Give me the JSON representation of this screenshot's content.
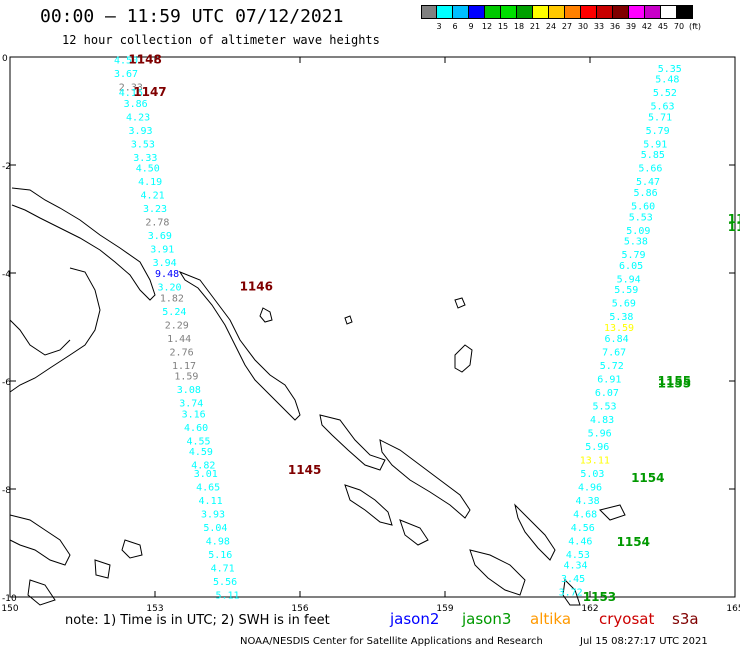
{
  "header": {
    "title": "00:00 — 11:59 UTC 07/12/2021",
    "subtitle": "12 hour collection of altimeter wave heights"
  },
  "colorbar": {
    "colors": [
      "#808080",
      "#00ffff",
      "#00bfff",
      "#0000ff",
      "#00c800",
      "#00e000",
      "#00a000",
      "#ffff00",
      "#ffc800",
      "#ff8000",
      "#ff0000",
      "#c80000",
      "#800000",
      "#ff00ff",
      "#c800c8",
      "#ffffff",
      "#000000"
    ],
    "labels": [
      "3",
      "6",
      "9",
      "12",
      "15",
      "18",
      "21",
      "24",
      "27",
      "30",
      "33",
      "36",
      "39",
      "42",
      "45",
      "70",
      "(ft)"
    ]
  },
  "footer": {
    "note": "note: 1) Time is in UTC; 2) SWH is in feet",
    "legend": [
      {
        "label": "jason2",
        "color": "#0000ff"
      },
      {
        "label": "jason3",
        "color": "#009900"
      },
      {
        "label": "altika",
        "color": "#ff9900"
      },
      {
        "label": "cryosat",
        "color": "#cc0000"
      },
      {
        "label": "s3a",
        "color": "#800000"
      }
    ],
    "credit": "NOAA/NESDIS Center for Satellite Applications and Research",
    "timestamp": "Jul 15 08:27:17 UTC 2021"
  },
  "chart_data": {
    "type": "scatter",
    "xlim": [
      150,
      165
    ],
    "ylim": [
      -10,
      0
    ],
    "x_ticks": [
      "150",
      "153",
      "156",
      "159",
      "162",
      "165"
    ],
    "y_ticks": [
      "0",
      "-2",
      "-4",
      "-6",
      "-8",
      "-10"
    ],
    "pass_labels": [
      {
        "text": "1148",
        "lon": 152.45,
        "lat": -0.05,
        "color": "#800000"
      },
      {
        "text": "1147",
        "lon": 152.55,
        "lat": -0.65,
        "color": "#800000"
      },
      {
        "text": "1146",
        "lon": 154.75,
        "lat": -4.25,
        "color": "#800000"
      },
      {
        "text": "1145",
        "lon": 155.75,
        "lat": -7.65,
        "color": "#800000"
      },
      {
        "text": "1155",
        "lon": 163.4,
        "lat": -6.0,
        "color": "#009900"
      },
      {
        "text": "1155",
        "lon": 163.4,
        "lat": -6.05,
        "color": "#009900"
      },
      {
        "text": "1154",
        "lon": 162.85,
        "lat": -7.8,
        "color": "#009900"
      },
      {
        "text": "1154",
        "lon": 162.55,
        "lat": -8.98,
        "color": "#009900"
      },
      {
        "text": "1153",
        "lon": 161.85,
        "lat": -10.0,
        "color": "#009900"
      },
      {
        "text": "11",
        "lon": 164.85,
        "lat": -3.0,
        "color": "#009900"
      },
      {
        "text": "11",
        "lon": 164.85,
        "lat": -3.15,
        "color": "#009900"
      }
    ],
    "series": [
      {
        "name": "s3a",
        "points": [
          {
            "lon": 152.4,
            "lat": -0.05,
            "v": "4.50",
            "c": "#00ffff"
          },
          {
            "lon": 152.4,
            "lat": -0.3,
            "v": "3.67",
            "c": "#00ffff"
          },
          {
            "lon": 152.5,
            "lat": -0.55,
            "v": "2.33",
            "c": "#808080"
          },
          {
            "lon": 152.5,
            "lat": -0.65,
            "v": "4.16",
            "c": "#00ffff"
          },
          {
            "lon": 152.6,
            "lat": -0.85,
            "v": "3.86",
            "c": "#00ffff"
          },
          {
            "lon": 152.65,
            "lat": -1.1,
            "v": "4.23",
            "c": "#00ffff"
          },
          {
            "lon": 152.7,
            "lat": -1.35,
            "v": "3.93",
            "c": "#00ffff"
          },
          {
            "lon": 152.75,
            "lat": -1.6,
            "v": "3.53",
            "c": "#00ffff"
          },
          {
            "lon": 152.8,
            "lat": -1.85,
            "v": "3.33",
            "c": "#00ffff"
          },
          {
            "lon": 152.85,
            "lat": -2.05,
            "v": "4.50",
            "c": "#00ffff"
          },
          {
            "lon": 152.9,
            "lat": -2.3,
            "v": "4.19",
            "c": "#00ffff"
          },
          {
            "lon": 152.95,
            "lat": -2.55,
            "v": "4.21",
            "c": "#00ffff"
          },
          {
            "lon": 153.0,
            "lat": -2.8,
            "v": "3.23",
            "c": "#00ffff"
          },
          {
            "lon": 153.05,
            "lat": -3.05,
            "v": "2.78",
            "c": "#808080"
          },
          {
            "lon": 153.1,
            "lat": -3.3,
            "v": "3.69",
            "c": "#00ffff"
          },
          {
            "lon": 153.15,
            "lat": -3.55,
            "v": "3.91",
            "c": "#00ffff"
          },
          {
            "lon": 153.2,
            "lat": -3.8,
            "v": "3.94",
            "c": "#00ffff"
          },
          {
            "lon": 153.25,
            "lat": -4.0,
            "v": "9.48",
            "c": "#0000ff"
          },
          {
            "lon": 153.3,
            "lat": -4.25,
            "v": "3.20",
            "c": "#00ffff"
          },
          {
            "lon": 153.35,
            "lat": -4.45,
            "v": "1.82",
            "c": "#808080"
          },
          {
            "lon": 153.4,
            "lat": -4.7,
            "v": "5.24",
            "c": "#00ffff"
          },
          {
            "lon": 153.45,
            "lat": -4.95,
            "v": "2.29",
            "c": "#808080"
          },
          {
            "lon": 153.5,
            "lat": -5.2,
            "v": "1.44",
            "c": "#808080"
          },
          {
            "lon": 153.55,
            "lat": -5.45,
            "v": "2.76",
            "c": "#808080"
          },
          {
            "lon": 153.6,
            "lat": -5.7,
            "v": "1.17",
            "c": "#808080"
          },
          {
            "lon": 153.65,
            "lat": -5.9,
            "v": "1.59",
            "c": "#808080"
          },
          {
            "lon": 153.7,
            "lat": -6.15,
            "v": "3.08",
            "c": "#00ffff"
          },
          {
            "lon": 153.75,
            "lat": -6.4,
            "v": "3.74",
            "c": "#00ffff"
          },
          {
            "lon": 153.8,
            "lat": -6.6,
            "v": "3.16",
            "c": "#00ffff"
          },
          {
            "lon": 153.85,
            "lat": -6.85,
            "v": "4.60",
            "c": "#00ffff"
          },
          {
            "lon": 153.9,
            "lat": -7.1,
            "v": "4.55",
            "c": "#00ffff"
          },
          {
            "lon": 153.95,
            "lat": -7.3,
            "v": "4.59",
            "c": "#00ffff"
          },
          {
            "lon": 154.0,
            "lat": -7.55,
            "v": "4.82",
            "c": "#00ffff"
          },
          {
            "lon": 154.05,
            "lat": -7.7,
            "v": "3.01",
            "c": "#00ffff"
          },
          {
            "lon": 154.1,
            "lat": -7.95,
            "v": "4.65",
            "c": "#00ffff"
          },
          {
            "lon": 154.15,
            "lat": -8.2,
            "v": "4.11",
            "c": "#00ffff"
          },
          {
            "lon": 154.2,
            "lat": -8.45,
            "v": "3.93",
            "c": "#00ffff"
          },
          {
            "lon": 154.25,
            "lat": -8.7,
            "v": "5.04",
            "c": "#00ffff"
          },
          {
            "lon": 154.3,
            "lat": -8.95,
            "v": "4.98",
            "c": "#00ffff"
          },
          {
            "lon": 154.35,
            "lat": -9.2,
            "v": "5.16",
            "c": "#00ffff"
          },
          {
            "lon": 154.4,
            "lat": -9.45,
            "v": "4.71",
            "c": "#00ffff"
          },
          {
            "lon": 154.45,
            "lat": -9.7,
            "v": "5.56",
            "c": "#00ffff"
          },
          {
            "lon": 154.5,
            "lat": -9.95,
            "v": "5.11",
            "c": "#00ffff"
          }
        ]
      },
      {
        "name": "jason3",
        "points": [
          {
            "lon": 161.6,
            "lat": -9.9,
            "v": "3.72",
            "c": "#00ffff"
          },
          {
            "lon": 161.65,
            "lat": -9.65,
            "v": "3.45",
            "c": "#00ffff"
          },
          {
            "lon": 161.7,
            "lat": -9.4,
            "v": "4.34",
            "c": "#00ffff"
          },
          {
            "lon": 161.75,
            "lat": -9.2,
            "v": "4.53",
            "c": "#00ffff"
          },
          {
            "lon": 161.8,
            "lat": -8.95,
            "v": "4.46",
            "c": "#00ffff"
          },
          {
            "lon": 161.85,
            "lat": -8.7,
            "v": "4.56",
            "c": "#00ffff"
          },
          {
            "lon": 161.9,
            "lat": -8.45,
            "v": "4.68",
            "c": "#00ffff"
          },
          {
            "lon": 161.95,
            "lat": -8.2,
            "v": "4.38",
            "c": "#00ffff"
          },
          {
            "lon": 162.0,
            "lat": -7.95,
            "v": "4.96",
            "c": "#00ffff"
          },
          {
            "lon": 162.05,
            "lat": -7.7,
            "v": "5.03",
            "c": "#00ffff"
          },
          {
            "lon": 162.1,
            "lat": -7.45,
            "v": "13.11",
            "c": "#ffff00"
          },
          {
            "lon": 162.15,
            "lat": -7.2,
            "v": "5.96",
            "c": "#00ffff"
          },
          {
            "lon": 162.2,
            "lat": -6.95,
            "v": "5.96",
            "c": "#00ffff"
          },
          {
            "lon": 162.25,
            "lat": -6.7,
            "v": "4.83",
            "c": "#00ffff"
          },
          {
            "lon": 162.3,
            "lat": -6.45,
            "v": "5.53",
            "c": "#00ffff"
          },
          {
            "lon": 162.35,
            "lat": -6.2,
            "v": "6.07",
            "c": "#00ffff"
          },
          {
            "lon": 162.4,
            "lat": -5.95,
            "v": "6.91",
            "c": "#00ffff"
          },
          {
            "lon": 162.45,
            "lat": -5.7,
            "v": "5.72",
            "c": "#00ffff"
          },
          {
            "lon": 162.5,
            "lat": -5.45,
            "v": "7.67",
            "c": "#00ffff"
          },
          {
            "lon": 162.55,
            "lat": -5.2,
            "v": "6.84",
            "c": "#00ffff"
          },
          {
            "lon": 162.6,
            "lat": -5.0,
            "v": "13.59",
            "c": "#ffff00"
          },
          {
            "lon": 162.65,
            "lat": -4.8,
            "v": "5.38",
            "c": "#00ffff"
          },
          {
            "lon": 162.7,
            "lat": -4.55,
            "v": "5.69",
            "c": "#00ffff"
          },
          {
            "lon": 162.75,
            "lat": -4.3,
            "v": "5.59",
            "c": "#00ffff"
          },
          {
            "lon": 162.8,
            "lat": -4.1,
            "v": "5.94",
            "c": "#00ffff"
          },
          {
            "lon": 162.85,
            "lat": -3.85,
            "v": "6.05",
            "c": "#00ffff"
          },
          {
            "lon": 162.9,
            "lat": -3.65,
            "v": "5.79",
            "c": "#00ffff"
          },
          {
            "lon": 162.95,
            "lat": -3.4,
            "v": "5.38",
            "c": "#00ffff"
          },
          {
            "lon": 163.0,
            "lat": -3.2,
            "v": "5.09",
            "c": "#00ffff"
          },
          {
            "lon": 163.05,
            "lat": -2.95,
            "v": "5.53",
            "c": "#00ffff"
          },
          {
            "lon": 163.1,
            "lat": -2.75,
            "v": "5.60",
            "c": "#00ffff"
          },
          {
            "lon": 163.15,
            "lat": -2.5,
            "v": "5.86",
            "c": "#00ffff"
          },
          {
            "lon": 163.2,
            "lat": -2.3,
            "v": "5.47",
            "c": "#00ffff"
          },
          {
            "lon": 163.25,
            "lat": -2.05,
            "v": "5.66",
            "c": "#00ffff"
          },
          {
            "lon": 163.3,
            "lat": -1.8,
            "v": "5.85",
            "c": "#00ffff"
          },
          {
            "lon": 163.35,
            "lat": -1.6,
            "v": "5.91",
            "c": "#00ffff"
          },
          {
            "lon": 163.4,
            "lat": -1.35,
            "v": "5.79",
            "c": "#00ffff"
          },
          {
            "lon": 163.45,
            "lat": -1.1,
            "v": "5.71",
            "c": "#00ffff"
          },
          {
            "lon": 163.5,
            "lat": -0.9,
            "v": "5.63",
            "c": "#00ffff"
          },
          {
            "lon": 163.55,
            "lat": -0.65,
            "v": "5.52",
            "c": "#00ffff"
          },
          {
            "lon": 163.6,
            "lat": -0.4,
            "v": "5.48",
            "c": "#00ffff"
          },
          {
            "lon": 163.65,
            "lat": -0.2,
            "v": "5.35",
            "c": "#00ffff"
          }
        ]
      }
    ]
  }
}
